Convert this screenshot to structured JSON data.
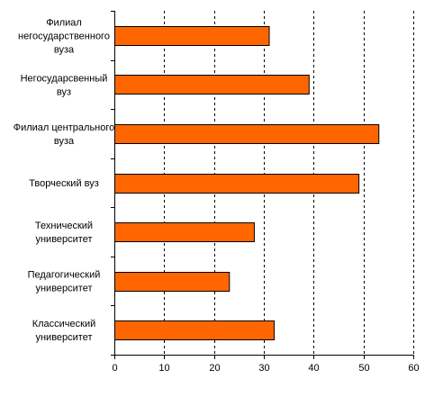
{
  "chart_data": {
    "type": "bar",
    "orientation": "horizontal",
    "categories": [
      "Филиал негосударственного вуза",
      "Негосударсвенный вуз",
      "Филиал центрального вуза",
      "Творческий вуз",
      "Технический университет",
      "Педагогический университет",
      "Классический университет"
    ],
    "category_label_lines": [
      [
        "Филиал",
        "негосударственного",
        "вуза"
      ],
      [
        "Негосударсвенный",
        "вуз"
      ],
      [
        "Филиал центрального",
        "вуза"
      ],
      [
        "Творческий вуз"
      ],
      [
        "Технический",
        "университет"
      ],
      [
        "Педагогический",
        "университет"
      ],
      [
        "Классический",
        "университет"
      ]
    ],
    "values": [
      31,
      39,
      53,
      49,
      28,
      23,
      32
    ],
    "xlim": [
      0,
      60
    ],
    "xticks": [
      0,
      10,
      20,
      30,
      40,
      50,
      60
    ],
    "grid": "vertical dashed",
    "title": "",
    "xlabel": "",
    "ylabel": "",
    "legend": "none",
    "colors": {
      "bar_fill": "#FF6600",
      "bar_stroke": "#000000",
      "grid": "#000000",
      "axis": "#000000"
    }
  }
}
